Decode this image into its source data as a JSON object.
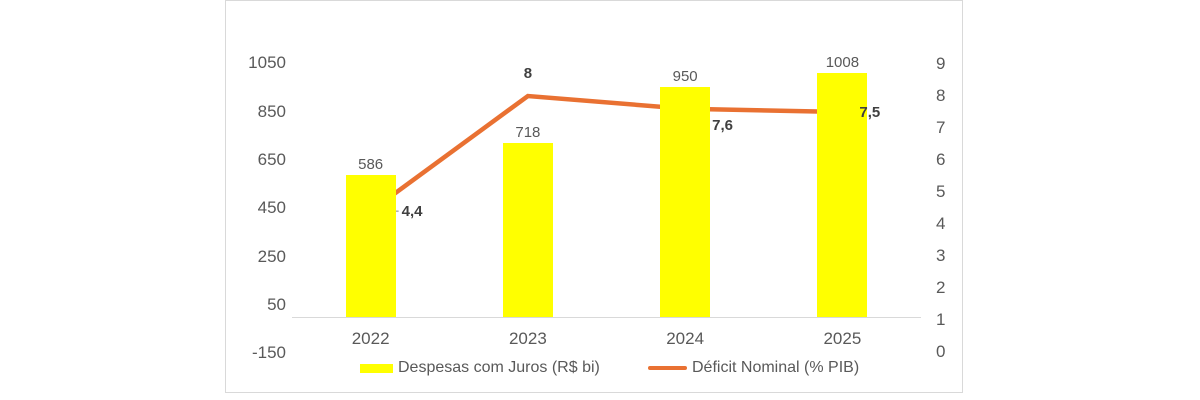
{
  "chart_data": {
    "type": "combo",
    "subtypes": [
      "bar",
      "line"
    ],
    "title": "",
    "categories": [
      "2022",
      "2023",
      "2024",
      "2025"
    ],
    "series": [
      {
        "name": "Despesas com Juros (R$ bi)",
        "type": "bar",
        "axis": "left",
        "color": "#FFFF00",
        "values": [
          586,
          718,
          950,
          1008
        ],
        "data_labels": [
          "586",
          "718",
          "950",
          "1008"
        ]
      },
      {
        "name": "Déficit Nominal (% PIB)",
        "type": "line",
        "axis": "right",
        "color": "#E97132",
        "values": [
          4.4,
          8,
          7.6,
          7.5
        ],
        "data_labels": [
          "4,4",
          "8",
          "7,6",
          "7,5"
        ]
      }
    ],
    "left_axis": {
      "min": -150,
      "max": 1050,
      "step": 200,
      "tick_values": [
        1050,
        850,
        650,
        450,
        250,
        50,
        -150
      ],
      "tick_labels": [
        "1050",
        "850",
        "650",
        "450",
        "250",
        "50",
        "-150"
      ]
    },
    "right_axis": {
      "min": 0,
      "max": 9,
      "step": 1,
      "tick_values": [
        9,
        8,
        7,
        6,
        5,
        4,
        3,
        2,
        1,
        0
      ],
      "tick_labels": [
        "9",
        "8",
        "7",
        "6",
        "5",
        "4",
        "3",
        "2",
        "1",
        "0"
      ]
    },
    "legend": {
      "position": "bottom"
    },
    "gridlines": false
  },
  "colors": {
    "bar": "#FFFF00",
    "line": "#E97132",
    "axis_text": "#595959",
    "bar_data_label": "#595959",
    "line_data_label": "#404040",
    "axis_line": "#D9D9D9",
    "panel_border": "#D9D9D9",
    "leader_line": "#A6A6A6",
    "background": "#FFFFFF"
  }
}
